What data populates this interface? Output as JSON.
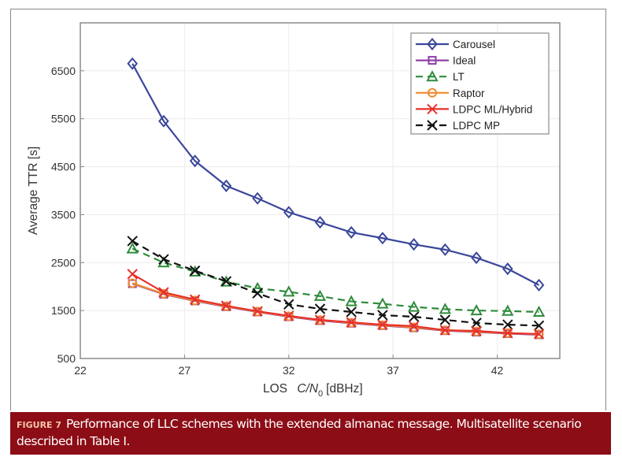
{
  "chart_data": {
    "type": "line",
    "title": "",
    "xlabel_prefix": "LOS",
    "xlabel_var": "C/N",
    "xlabel_sub": "0",
    "xlabel_unit": "[dBHz]",
    "ylabel": "Average TTR [s]",
    "xlim": [
      22,
      45
    ],
    "ylim": [
      500,
      7500
    ],
    "xticks": [
      22,
      27,
      32,
      37,
      42
    ],
    "yticks": [
      500,
      1500,
      2500,
      3500,
      4500,
      5500,
      6500
    ],
    "grid": true,
    "legend_position": "top-right",
    "x": [
      24.5,
      26,
      27.5,
      29,
      30.5,
      32,
      33.5,
      35,
      36.5,
      38,
      39.5,
      41,
      42.5,
      44
    ],
    "series": [
      {
        "name": "Carousel",
        "color": "#3a479a",
        "marker": "diamond",
        "dash": false,
        "values": [
          6650,
          5450,
          4620,
          4100,
          3840,
          3550,
          3340,
          3130,
          3010,
          2880,
          2770,
          2600,
          2370,
          2030
        ]
      },
      {
        "name": "Ideal",
        "color": "#8e3fa6",
        "marker": "square",
        "dash": false,
        "values": [
          2060,
          1840,
          1700,
          1580,
          1470,
          1370,
          1290,
          1235,
          1185,
          1140,
          1080,
          1050,
          1020,
          995
        ]
      },
      {
        "name": "LT",
        "color": "#2e8b3c",
        "marker": "triangle",
        "dash": true,
        "values": [
          2790,
          2500,
          2310,
          2100,
          1965,
          1890,
          1800,
          1690,
          1640,
          1575,
          1530,
          1500,
          1490,
          1470
        ]
      },
      {
        "name": "Raptor",
        "color": "#f08a2c",
        "marker": "circle",
        "dash": false,
        "values": [
          2070,
          1850,
          1710,
          1590,
          1480,
          1380,
          1300,
          1245,
          1195,
          1150,
          1090,
          1060,
          1030,
          1005
        ]
      },
      {
        "name": "LDPC ML/Hybrid",
        "color": "#e8302a",
        "marker": "x",
        "dash": false,
        "values": [
          2260,
          1880,
          1730,
          1600,
          1485,
          1390,
          1305,
          1255,
          1205,
          1175,
          1090,
          1075,
          1030,
          1010
        ]
      },
      {
        "name": "LDPC MP",
        "color": "#111111",
        "marker": "x",
        "dash": true,
        "values": [
          2950,
          2570,
          2330,
          2110,
          1860,
          1630,
          1535,
          1470,
          1405,
          1370,
          1305,
          1240,
          1205,
          1185
        ]
      }
    ]
  },
  "caption": {
    "label": "FIGURE 7",
    "text": "Performance of LLC schemes with the extended almanac message. Multisatellite scenario described in Table I."
  }
}
